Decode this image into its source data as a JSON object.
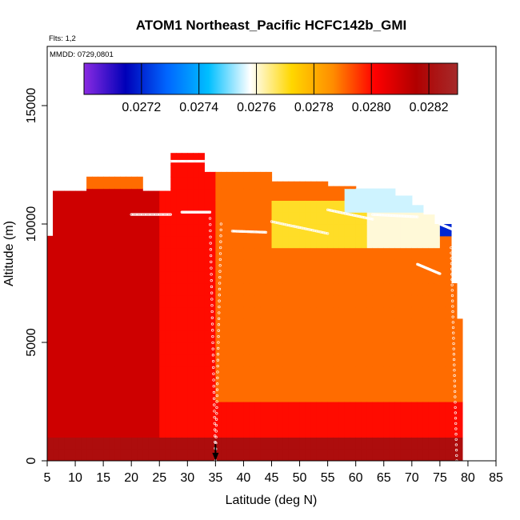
{
  "colors": {
    "background": "#ffffff",
    "frame": "#000000",
    "point_edge": "#ffffff",
    "arrow": "#000000",
    "colorbar_stops": [
      "#8a2be2",
      "#0000b8",
      "#0066ff",
      "#00bfff",
      "#ffffff",
      "#ffd700",
      "#ff8c00",
      "#ff0000",
      "#b00000",
      "#a52a2a"
    ]
  },
  "chart_data": {
    "type": "heatmap",
    "title": "ATOM1 Northeast_Pacific HCFC142b_GMI",
    "flights_label": "Flts: 1,2",
    "date_label": "MMDD: 0729,0801",
    "xlabel": "Latitude (deg N)",
    "ylabel": "Altitude (m)",
    "xlim": [
      5,
      85
    ],
    "ylim": [
      0,
      17500
    ],
    "xticks": [
      "5",
      "10",
      "15",
      "20",
      "25",
      "30",
      "35",
      "40",
      "45",
      "50",
      "55",
      "60",
      "65",
      "70",
      "75",
      "80",
      "85"
    ],
    "yticks": [
      "0",
      "5000",
      "10000",
      "15000"
    ],
    "colorbar": {
      "range": [
        0.027,
        0.0283
      ],
      "ticks": [
        "0.0272",
        "0.0274",
        "0.0276",
        "0.0278",
        "0.0280",
        "0.0282"
      ]
    },
    "marker_arrow_latitude": 35,
    "upper_envelope": [
      {
        "lat": [
          5,
          6.5
        ],
        "alt": 9500
      },
      {
        "lat": [
          6.5,
          12
        ],
        "alt": 11400
      },
      {
        "lat": [
          12,
          22
        ],
        "alt": 12000
      },
      {
        "lat": [
          22,
          27
        ],
        "alt": 11400
      },
      {
        "lat": [
          27,
          33
        ],
        "alt": 13000
      },
      {
        "lat": [
          33,
          45
        ],
        "alt": 12200
      },
      {
        "lat": [
          45,
          55
        ],
        "alt": 11800
      },
      {
        "lat": [
          55,
          60
        ],
        "alt": 11600
      },
      {
        "lat": [
          60,
          67
        ],
        "alt": 11500
      },
      {
        "lat": [
          67,
          70
        ],
        "alt": 11200
      },
      {
        "lat": [
          70,
          72
        ],
        "alt": 10800
      },
      {
        "lat": [
          72,
          74
        ],
        "alt": 10400
      },
      {
        "lat": [
          74,
          77
        ],
        "alt": 10000
      },
      {
        "lat": [
          77,
          78
        ],
        "alt": 7500
      },
      {
        "lat": [
          78,
          79
        ],
        "alt": 6000
      }
    ],
    "value_field": [
      {
        "lat": [
          5,
          25
        ],
        "alt": [
          0,
          11500
        ],
        "value": 0.0281
      },
      {
        "lat": [
          25,
          35
        ],
        "alt": [
          0,
          13000
        ],
        "value": 0.028
      },
      {
        "lat": [
          35,
          79
        ],
        "alt": [
          0,
          2500
        ],
        "value": 0.028
      },
      {
        "lat": [
          35,
          45
        ],
        "alt": [
          2500,
          12000
        ],
        "value": 0.0279
      },
      {
        "lat": [
          45,
          79
        ],
        "alt": [
          2500,
          9000
        ],
        "value": 0.0279
      },
      {
        "lat": [
          45,
          62
        ],
        "alt": [
          9000,
          11000
        ],
        "value": 0.0277
      },
      {
        "lat": [
          62,
          75
        ],
        "alt": [
          9000,
          11000
        ],
        "value": 0.0276
      },
      {
        "lat": [
          58,
          72
        ],
        "alt": [
          10500,
          11500
        ],
        "value": 0.02755
      },
      {
        "lat": [
          75,
          78
        ],
        "alt": [
          9500,
          10200
        ],
        "value": 0.0272
      },
      {
        "lat": [
          5,
          79
        ],
        "alt": [
          0,
          900
        ],
        "value": 0.0282
      }
    ],
    "flight_tracks": [
      {
        "lat": [
          27,
          33
        ],
        "alt": [
          12650,
          12650
        ]
      },
      {
        "lat": [
          20,
          27
        ],
        "alt": [
          10400,
          10400
        ]
      },
      {
        "lat": [
          29,
          34
        ],
        "alt": [
          10500,
          10500
        ]
      },
      {
        "lat": [
          38,
          44
        ],
        "alt": [
          9700,
          9650
        ]
      },
      {
        "lat": [
          45,
          55
        ],
        "alt": [
          10100,
          9600
        ]
      },
      {
        "lat": [
          55,
          63
        ],
        "alt": [
          10600,
          10200
        ]
      },
      {
        "lat": [
          63,
          71
        ],
        "alt": [
          10400,
          10300
        ]
      },
      {
        "lat": [
          75,
          78
        ],
        "alt": [
          10000,
          9700
        ]
      },
      {
        "lat": [
          71,
          75
        ],
        "alt": [
          8300,
          7900
        ]
      },
      {
        "lat": [
          34,
          35
        ],
        "alt": [
          10500,
          0
        ]
      },
      {
        "lat": [
          35,
          36
        ],
        "alt": [
          0,
          10000
        ]
      },
      {
        "lat": [
          77,
          78
        ],
        "alt": [
          9000,
          0
        ]
      }
    ]
  }
}
